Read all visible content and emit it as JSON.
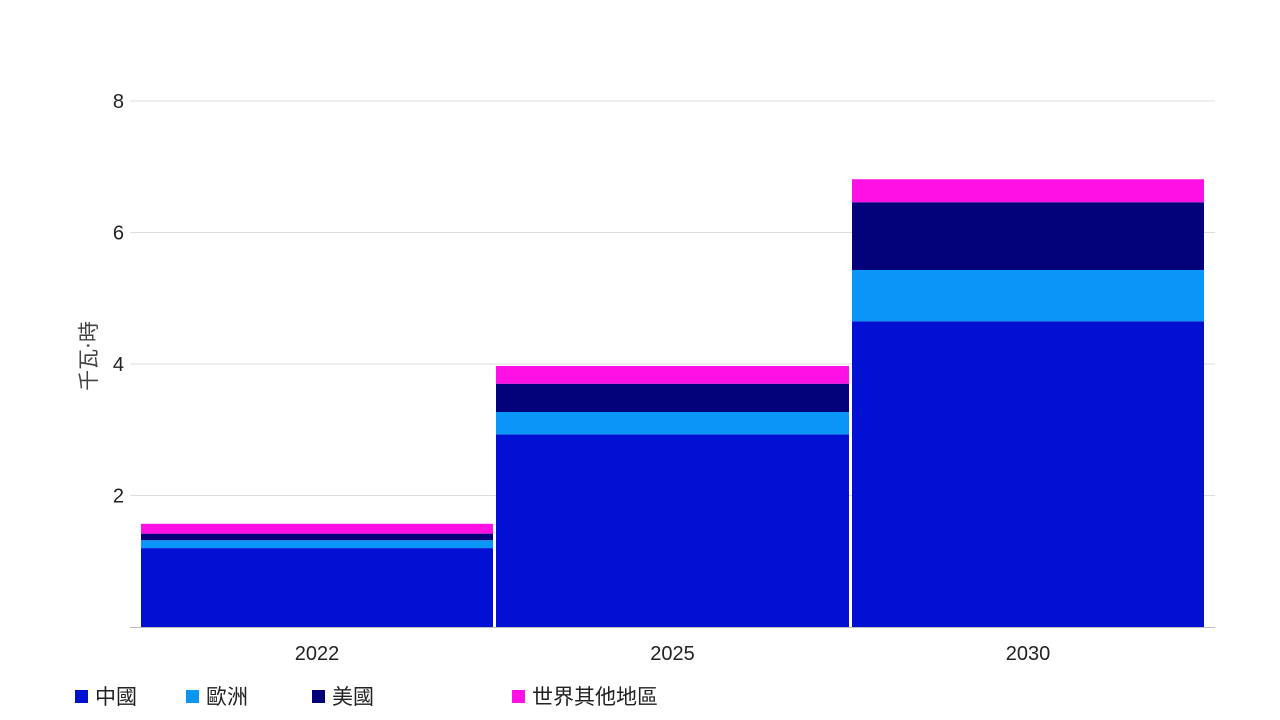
{
  "chart_data": {
    "type": "bar",
    "stacked": true,
    "categories": [
      "2022",
      "2025",
      "2030"
    ],
    "series": [
      {
        "name": "中國",
        "color": "#0210d3",
        "values": [
          1.2,
          2.93,
          4.65
        ]
      },
      {
        "name": "歐洲",
        "color": "#0a96f7",
        "values": [
          0.12,
          0.34,
          0.78
        ]
      },
      {
        "name": "美國",
        "color": "#02017a",
        "values": [
          0.1,
          0.43,
          1.03
        ]
      },
      {
        "name": "世界其他地區",
        "color": "#ff11e5",
        "values": [
          0.15,
          0.27,
          0.35
        ]
      }
    ],
    "title": "",
    "xlabel": "",
    "ylabel": "千瓦‧時",
    "ylim": [
      0,
      8
    ],
    "yticks": [
      2,
      4,
      6,
      8
    ],
    "grid": true,
    "legend_position": "bottom-left"
  }
}
